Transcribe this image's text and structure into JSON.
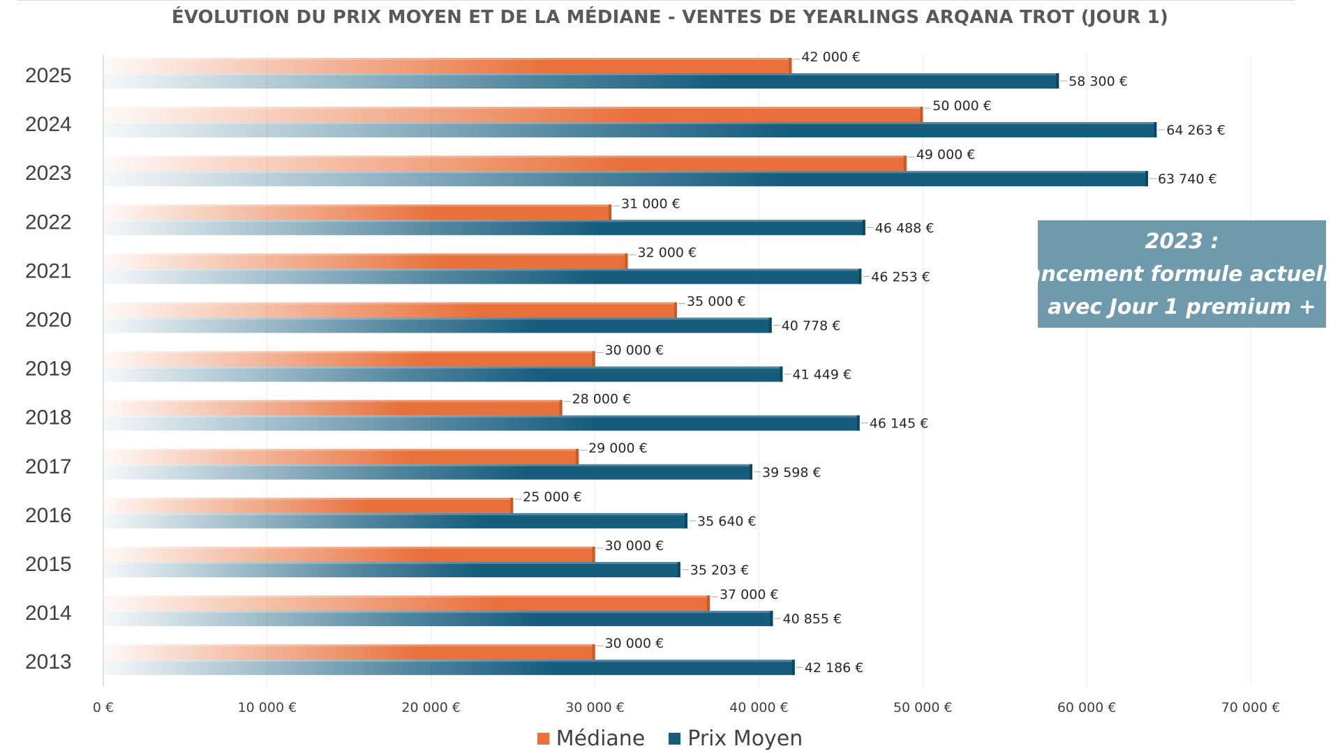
{
  "chart_data": {
    "type": "bar",
    "orientation": "horizontal",
    "title": "ÉVOLUTION DU PRIX MOYEN ET DE LA MÉDIANE - VENTES DE YEARLINGS ARQANA TROT (JOUR 1)",
    "categories": [
      "2025",
      "2024",
      "2023",
      "2022",
      "2021",
      "2020",
      "2019",
      "2018",
      "2017",
      "2016",
      "2015",
      "2014",
      "2013"
    ],
    "series": [
      {
        "name": "Médiane",
        "color": "#e8703a",
        "values": [
          42000,
          50000,
          49000,
          31000,
          32000,
          35000,
          30000,
          28000,
          29000,
          25000,
          30000,
          37000,
          30000
        ],
        "labels": [
          "42 000 €",
          "50 000 €",
          "49 000 €",
          "31 000 €",
          "32 000 €",
          "35 000 €",
          "30 000 €",
          "28 000 €",
          "29 000 €",
          "25 000 €",
          "30 000 €",
          "37 000 €",
          "30 000 €"
        ]
      },
      {
        "name": "Prix Moyen",
        "color": "#165c7d",
        "values": [
          58300,
          64263,
          63740,
          46488,
          46253,
          40778,
          41449,
          46145,
          39598,
          35640,
          35203,
          40855,
          42186
        ],
        "labels": [
          "58 300 €",
          "64 263 €",
          "63 740 €",
          "46 488 €",
          "46 253 €",
          "40 778 €",
          "41 449 €",
          "46 145 €",
          "39 598 €",
          "35 640 €",
          "35 203 €",
          "40 855 €",
          "42 186 €"
        ]
      }
    ],
    "xlim": [
      0,
      70000
    ],
    "x_ticks": [
      0,
      10000,
      20000,
      30000,
      40000,
      50000,
      60000,
      70000
    ],
    "x_tick_labels": [
      "0 €",
      "10 000 €",
      "20 000 €",
      "30 000 €",
      "40 000 €",
      "50 000 €",
      "60 000 €",
      "70 000 €"
    ],
    "grid": "vertical",
    "legend_position": "bottom",
    "annotation": {
      "lines": [
        "2023 :",
        "lancement formule actuelle",
        "avec Jour 1 premium +"
      ],
      "background": "#6f9aac"
    }
  }
}
